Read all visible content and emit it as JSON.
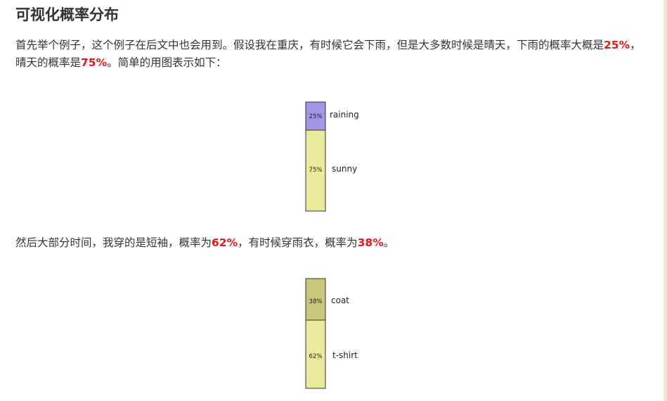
{
  "heading": "可视化概率分布",
  "para1": {
    "text_a": "首先举个例子，这个例子在后文中也会用到。假设我在重庆，有时候它会下雨，但是大多数时候是晴天，下雨的概率大概是",
    "value_a": "25%",
    "text_b": "，晴天的概率是",
    "value_b": "75%",
    "text_c": "。简单的用图表示如下："
  },
  "para2": {
    "text_a": "然后大部分时间，我穿的是短袖，概率为",
    "value_a": "62%",
    "text_b": "，有时候穿雨衣，概率为",
    "value_b": "38%",
    "text_c": "。"
  },
  "colors": {
    "highlight": "#e8161b",
    "raining": "#a295e6",
    "sunny": "#ebe99c",
    "coat": "#c8c77a",
    "tshirt": "#ebe99c"
  },
  "chart_data": [
    {
      "type": "bar",
      "stacked": true,
      "categories": [
        "raining",
        "sunny"
      ],
      "values": [
        25,
        75
      ],
      "value_labels": [
        "25%",
        "75%"
      ]
    },
    {
      "type": "bar",
      "stacked": true,
      "categories": [
        "coat",
        "t-shirt"
      ],
      "values": [
        38,
        62
      ],
      "value_labels": [
        "38%",
        "62%"
      ]
    }
  ]
}
